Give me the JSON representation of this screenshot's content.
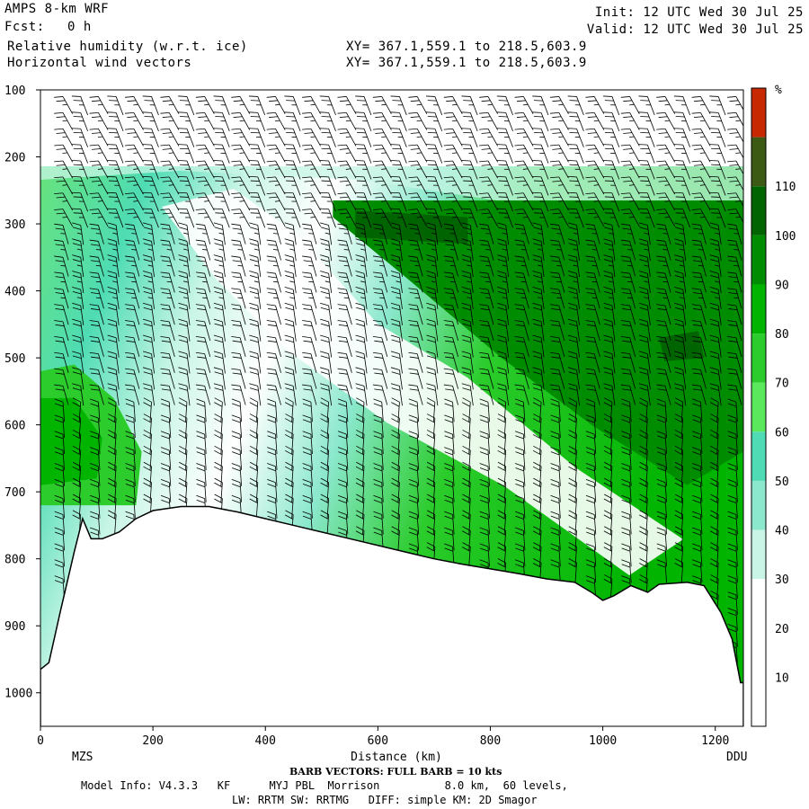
{
  "header": {
    "model": "AMPS 8-km WRF",
    "fcst_label": "Fcst:",
    "fcst_value": "0 h",
    "field1": "Relative humidity (w.r.t. ice)",
    "field2": "Horizontal wind vectors",
    "xy1": "XY= 367.1,559.1 to 218.5,603.9",
    "xy2": "XY= 367.1,559.1 to 218.5,603.9",
    "init": "Init: 12 UTC Wed 30 Jul 25",
    "valid": "Valid: 12 UTC Wed 30 Jul 25"
  },
  "footer": {
    "barb": "BARB VECTORS: FULL BARB = 10 kts",
    "model_info": "Model Info: V4.3.3   KF      MYJ PBL  Morrison          8.0 km,  60 levels,",
    "physics": "LW: RRTM SW: RRTMG   DIFF: simple KM: 2D Smagor"
  },
  "chart_data": {
    "type": "heatmap",
    "xlabel": "Distance (km)",
    "x_endpoints": {
      "left": "MZS",
      "right": "DDU"
    },
    "xlim": [
      0,
      1250
    ],
    "ylim": [
      1050,
      100
    ],
    "xticks": [
      0,
      200,
      400,
      600,
      800,
      1000,
      1200
    ],
    "yticks": [
      100,
      200,
      300,
      400,
      500,
      600,
      700,
      800,
      900,
      1000
    ],
    "colorbar": {
      "unit": "%",
      "ticks": [
        10,
        20,
        30,
        40,
        50,
        60,
        70,
        80,
        90,
        100,
        110
      ],
      "colors": [
        "#ffffff",
        "#ffffff",
        "#ffffff",
        "#c8f5e6",
        "#8be8cd",
        "#4fdcb4",
        "#5ce85c",
        "#2bcc2b",
        "#00b400",
        "#008c00",
        "#006400",
        "#3c5a14",
        "#c82800"
      ]
    },
    "terrain": [
      [
        0,
        965
      ],
      [
        15,
        955
      ],
      [
        35,
        880
      ],
      [
        60,
        790
      ],
      [
        75,
        740
      ],
      [
        90,
        770
      ],
      [
        110,
        770
      ],
      [
        140,
        760
      ],
      [
        170,
        740
      ],
      [
        200,
        728
      ],
      [
        250,
        722
      ],
      [
        300,
        722
      ],
      [
        350,
        730
      ],
      [
        400,
        740
      ],
      [
        450,
        750
      ],
      [
        500,
        760
      ],
      [
        550,
        770
      ],
      [
        600,
        780
      ],
      [
        650,
        790
      ],
      [
        700,
        800
      ],
      [
        750,
        808
      ],
      [
        800,
        815
      ],
      [
        850,
        822
      ],
      [
        900,
        830
      ],
      [
        950,
        835
      ],
      [
        980,
        850
      ],
      [
        1000,
        862
      ],
      [
        1020,
        855
      ],
      [
        1050,
        840
      ],
      [
        1080,
        850
      ],
      [
        1100,
        838
      ],
      [
        1150,
        835
      ],
      [
        1180,
        840
      ],
      [
        1210,
        880
      ],
      [
        1230,
        920
      ],
      [
        1245,
        985
      ]
    ],
    "humid_bands": [
      {
        "rh": 95,
        "poly": [
          [
            520,
            265
          ],
          [
            1250,
            265
          ],
          [
            1250,
            640
          ],
          [
            1150,
            690
          ],
          [
            980,
            600
          ],
          [
            820,
            500
          ],
          [
            650,
            380
          ],
          [
            520,
            290
          ]
        ]
      },
      {
        "rh": 105,
        "poly": [
          [
            560,
            280
          ],
          [
            760,
            290
          ],
          [
            760,
            330
          ],
          [
            560,
            320
          ]
        ]
      },
      {
        "rh": 105,
        "poly": [
          [
            1100,
            470
          ],
          [
            1170,
            460
          ],
          [
            1180,
            500
          ],
          [
            1110,
            505
          ]
        ]
      },
      {
        "rh": 75,
        "poly": [
          [
            0,
            520
          ],
          [
            60,
            510
          ],
          [
            130,
            560
          ],
          [
            180,
            640
          ],
          [
            170,
            720
          ],
          [
            0,
            720
          ]
        ]
      },
      {
        "rh": 85,
        "poly": [
          [
            0,
            560
          ],
          [
            60,
            560
          ],
          [
            110,
            620
          ],
          [
            100,
            680
          ],
          [
            0,
            690
          ]
        ]
      }
    ]
  }
}
